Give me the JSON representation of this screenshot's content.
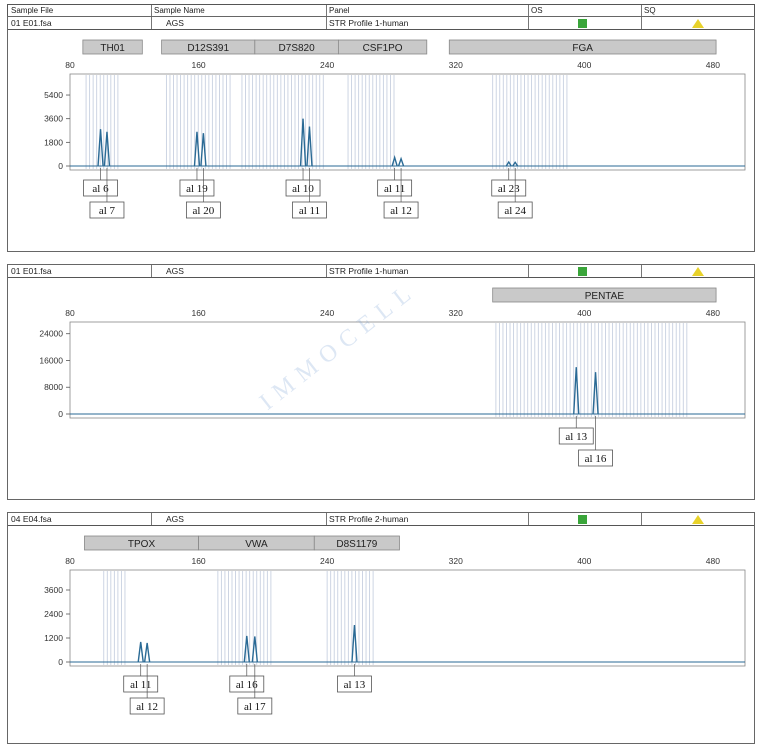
{
  "header": {
    "sample_file": "Sample File",
    "sample_name": "Sample Name",
    "panel": "Panel",
    "os": "OS",
    "sq": "SQ"
  },
  "panels": [
    {
      "file": "01 E01.fsa",
      "sample": "AGS",
      "panel_name": "STR Profile 1-human",
      "loci": [
        {
          "name": "TH01",
          "start": 88,
          "end": 125
        },
        {
          "name": "D12S391",
          "start": 137,
          "end": 195
        },
        {
          "name": "D7S820",
          "start": 195,
          "end": 247
        },
        {
          "name": "CSF1PO",
          "start": 247,
          "end": 302
        },
        {
          "name": "FGA",
          "start": 316,
          "end": 482
        }
      ],
      "y_ticks": [
        "0",
        "1800",
        "3600",
        "5400"
      ],
      "ymax": 7000,
      "bin_ranges": [
        [
          90,
          110
        ],
        [
          140,
          180
        ],
        [
          187,
          238
        ],
        [
          253,
          282
        ],
        [
          343,
          390
        ]
      ],
      "peaks": [
        {
          "x": 99,
          "h": 2800
        },
        {
          "x": 103,
          "h": 2600
        },
        {
          "x": 159,
          "h": 2600
        },
        {
          "x": 163,
          "h": 2500
        },
        {
          "x": 225,
          "h": 3600
        },
        {
          "x": 229,
          "h": 3000
        },
        {
          "x": 282,
          "h": 650
        },
        {
          "x": 286,
          "h": 550
        },
        {
          "x": 353,
          "h": 300
        },
        {
          "x": 357,
          "h": 280
        }
      ],
      "alleles": [
        {
          "label": "al 6",
          "x": 99,
          "row": 0
        },
        {
          "label": "al 7",
          "x": 103,
          "row": 1
        },
        {
          "label": "al 19",
          "x": 159,
          "row": 0
        },
        {
          "label": "al 20",
          "x": 163,
          "row": 1
        },
        {
          "label": "al 10",
          "x": 225,
          "row": 0
        },
        {
          "label": "al 11",
          "x": 229,
          "row": 1
        },
        {
          "label": "al 11",
          "x": 282,
          "row": 0
        },
        {
          "label": "al 12",
          "x": 286,
          "row": 1
        },
        {
          "label": "al 23",
          "x": 353,
          "row": 0
        },
        {
          "label": "al 24",
          "x": 357,
          "row": 1
        }
      ]
    },
    {
      "file": "01 E01.fsa",
      "sample": "AGS",
      "panel_name": "STR Profile 1-human",
      "loci": [
        {
          "name": "PENTAE",
          "start": 343,
          "end": 482
        }
      ],
      "y_ticks": [
        "0",
        "8000",
        "16000",
        "24000"
      ],
      "ymax": 27500,
      "bin_ranges": [
        [
          345,
          465
        ]
      ],
      "peaks": [
        {
          "x": 395,
          "h": 14000
        },
        {
          "x": 407,
          "h": 12500
        }
      ],
      "alleles": [
        {
          "label": "al 13",
          "x": 395,
          "row": 0
        },
        {
          "label": "al 16",
          "x": 407,
          "row": 1
        }
      ]
    },
    {
      "file": "04 E04.fsa",
      "sample": "AGS",
      "panel_name": "STR Profile 2-human",
      "loci": [
        {
          "name": "TPOX",
          "start": 89,
          "end": 160
        },
        {
          "name": "VWA",
          "start": 160,
          "end": 232
        },
        {
          "name": "D8S1179",
          "start": 232,
          "end": 285
        }
      ],
      "y_ticks": [
        "0",
        "1200",
        "2400",
        "3600"
      ],
      "ymax": 4600,
      "bin_ranges": [
        [
          101,
          115
        ],
        [
          172,
          205
        ],
        [
          240,
          270
        ]
      ],
      "peaks": [
        {
          "x": 124,
          "h": 1000
        },
        {
          "x": 128,
          "h": 950
        },
        {
          "x": 190,
          "h": 1300
        },
        {
          "x": 195,
          "h": 1280
        },
        {
          "x": 257,
          "h": 1850
        }
      ],
      "alleles": [
        {
          "label": "al 11",
          "x": 124,
          "row": 0
        },
        {
          "label": "al 12",
          "x": 128,
          "row": 1
        },
        {
          "label": "al 16",
          "x": 190,
          "row": 0
        },
        {
          "label": "al 17",
          "x": 195,
          "row": 1
        },
        {
          "label": "al 13",
          "x": 257,
          "row": 0
        }
      ]
    }
  ],
  "chart_data": [
    {
      "type": "line",
      "title": "",
      "xlabel": "",
      "ylabel": "",
      "xlim": [
        80,
        500
      ],
      "x_ticks": [
        80,
        160,
        240,
        320,
        400,
        480
      ],
      "ylim": [
        0,
        7000
      ],
      "y_ticks": [
        0,
        1800,
        3600,
        5400
      ],
      "series": [
        {
          "name": "",
          "points": [
            [
              99,
              2800
            ],
            [
              103,
              2600
            ],
            [
              159,
              2600
            ],
            [
              163,
              2500
            ],
            [
              225,
              3600
            ],
            [
              229,
              3000
            ],
            [
              282,
              650
            ],
            [
              286,
              550
            ],
            [
              353,
              300
            ],
            [
              357,
              280
            ]
          ]
        }
      ]
    },
    {
      "type": "line",
      "title": "",
      "xlabel": "",
      "ylabel": "",
      "xlim": [
        80,
        500
      ],
      "x_ticks": [
        80,
        160,
        240,
        320,
        400,
        480
      ],
      "ylim": [
        0,
        27500
      ],
      "y_ticks": [
        0,
        8000,
        16000,
        24000
      ],
      "series": [
        {
          "name": "",
          "points": [
            [
              395,
              14000
            ],
            [
              407,
              12500
            ]
          ]
        }
      ]
    },
    {
      "type": "line",
      "title": "",
      "xlabel": "",
      "ylabel": "",
      "xlim": [
        80,
        500
      ],
      "x_ticks": [
        80,
        160,
        240,
        320,
        400,
        480
      ],
      "ylim": [
        0,
        4600
      ],
      "y_ticks": [
        0,
        1200,
        2400,
        3600
      ],
      "series": [
        {
          "name": "",
          "points": [
            [
              124,
              1000
            ],
            [
              128,
              950
            ],
            [
              190,
              1300
            ],
            [
              195,
              1280
            ],
            [
              257,
              1850
            ]
          ]
        }
      ]
    }
  ],
  "watermark": "IMMOCELL",
  "colors": {
    "trace": "#2a6a95",
    "bins": "#c8d0e0",
    "locus_bar": "#c9c9c9",
    "os": "#3aa53a",
    "sq": "#e8d22a"
  }
}
